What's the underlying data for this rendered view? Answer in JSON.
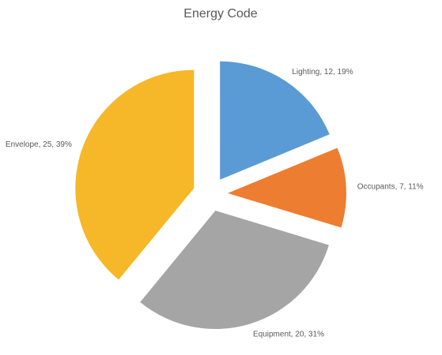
{
  "chart_data": {
    "type": "pie",
    "title": "Energy Code",
    "values": [
      12,
      7,
      20,
      25
    ],
    "value_labels": [
      "Lighting, 12, 19%",
      "Occupants, 7, 11%",
      "Equipment, 20, 31%",
      "Envelope, 25, 39%"
    ],
    "colors": [
      "#5b9bd5",
      "#ed7d31",
      "#a5a5a5",
      "#f6b828"
    ]
  }
}
